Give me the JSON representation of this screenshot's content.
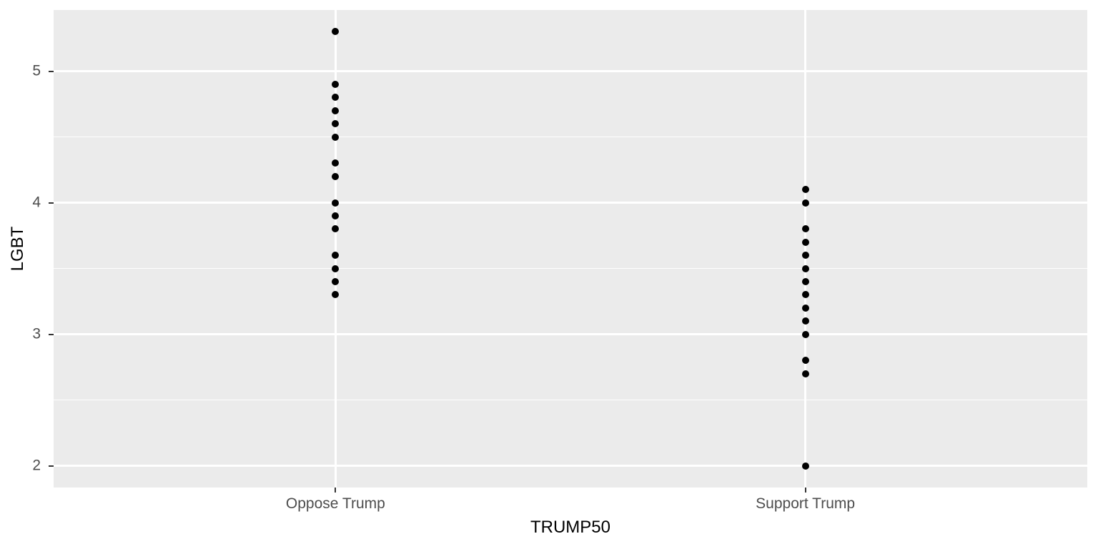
{
  "figure": {
    "background": "#FFFFFF"
  },
  "chart_data": {
    "type": "scatter",
    "title": "",
    "xlabel": "TRUMP50",
    "ylabel": "LGBT",
    "categories": [
      "Oppose Trump",
      "Support Trump"
    ],
    "series": [
      {
        "name": "Oppose Trump",
        "values": [
          5.3,
          4.9,
          4.8,
          4.7,
          4.6,
          4.5,
          4.3,
          4.2,
          4.0,
          3.9,
          3.8,
          3.6,
          3.5,
          3.4,
          3.3
        ]
      },
      {
        "name": "Support Trump",
        "values": [
          4.1,
          4.0,
          3.8,
          3.7,
          3.6,
          3.5,
          3.4,
          3.3,
          3.2,
          3.1,
          3.0,
          2.8,
          2.7,
          2.0
        ]
      }
    ],
    "y_ticks": [
      2,
      3,
      4,
      5
    ],
    "y_tick_labels": [
      "2",
      "3",
      "4",
      "5"
    ],
    "y_minor_ticks": [
      2.5,
      3.5,
      4.5
    ],
    "y_domain": [
      1.835,
      5.465
    ],
    "x_positions": [
      1,
      2
    ],
    "x_domain": [
      0.4,
      2.6
    ],
    "grid": true,
    "legend": "none",
    "point_color": "#000000",
    "panel_background": "#EBEBEB",
    "gridline_color": "#FFFFFF",
    "tick_label_color": "#4D4D4D",
    "axis_title_color": "#000000"
  }
}
